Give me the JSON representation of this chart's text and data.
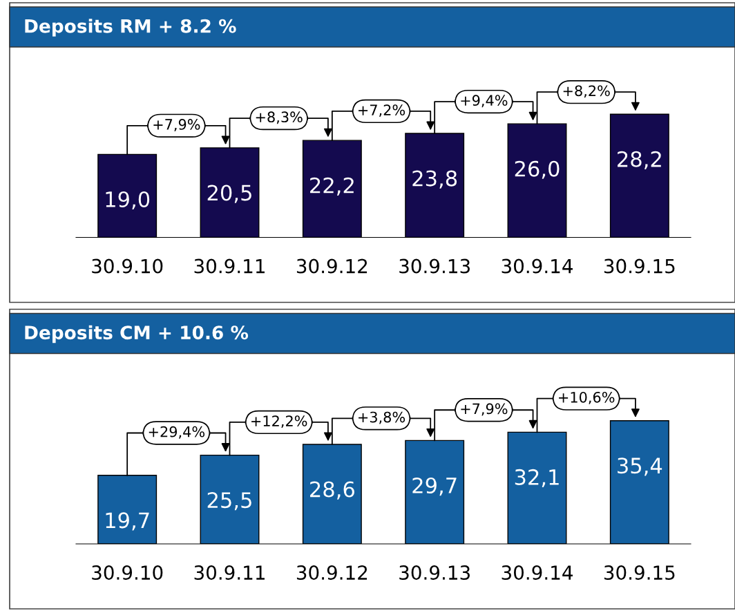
{
  "chart_data": [
    {
      "type": "bar",
      "title": "Deposits RM + 8.2 %",
      "categories": [
        "30.9.10",
        "30.9.11",
        "30.9.12",
        "30.9.13",
        "30.9.14",
        "30.9.15"
      ],
      "values": [
        19.0,
        20.5,
        22.2,
        23.8,
        26.0,
        28.2
      ],
      "value_labels": [
        "19,0",
        "20,5",
        "22,2",
        "23,8",
        "26,0",
        "28,2"
      ],
      "color": "#140a4f",
      "annotations": [
        "+7,9%",
        "+8,3%",
        "+7,2%",
        "+9,4%",
        "+8,2%"
      ]
    },
    {
      "type": "bar",
      "title": "Deposits CM + 10.6 %",
      "categories": [
        "30.9.10",
        "30.9.11",
        "30.9.12",
        "30.9.13",
        "30.9.14",
        "30.9.15"
      ],
      "values": [
        19.7,
        25.5,
        28.6,
        29.7,
        32.1,
        35.4
      ],
      "value_labels": [
        "19,7",
        "25,5",
        "28,6",
        "29,7",
        "32,1",
        "35,4"
      ],
      "color": "#1460a0",
      "annotations": [
        "+29,4%",
        "+12,2%",
        "+3,8%",
        "+7,9%",
        "+10,6%"
      ]
    }
  ]
}
